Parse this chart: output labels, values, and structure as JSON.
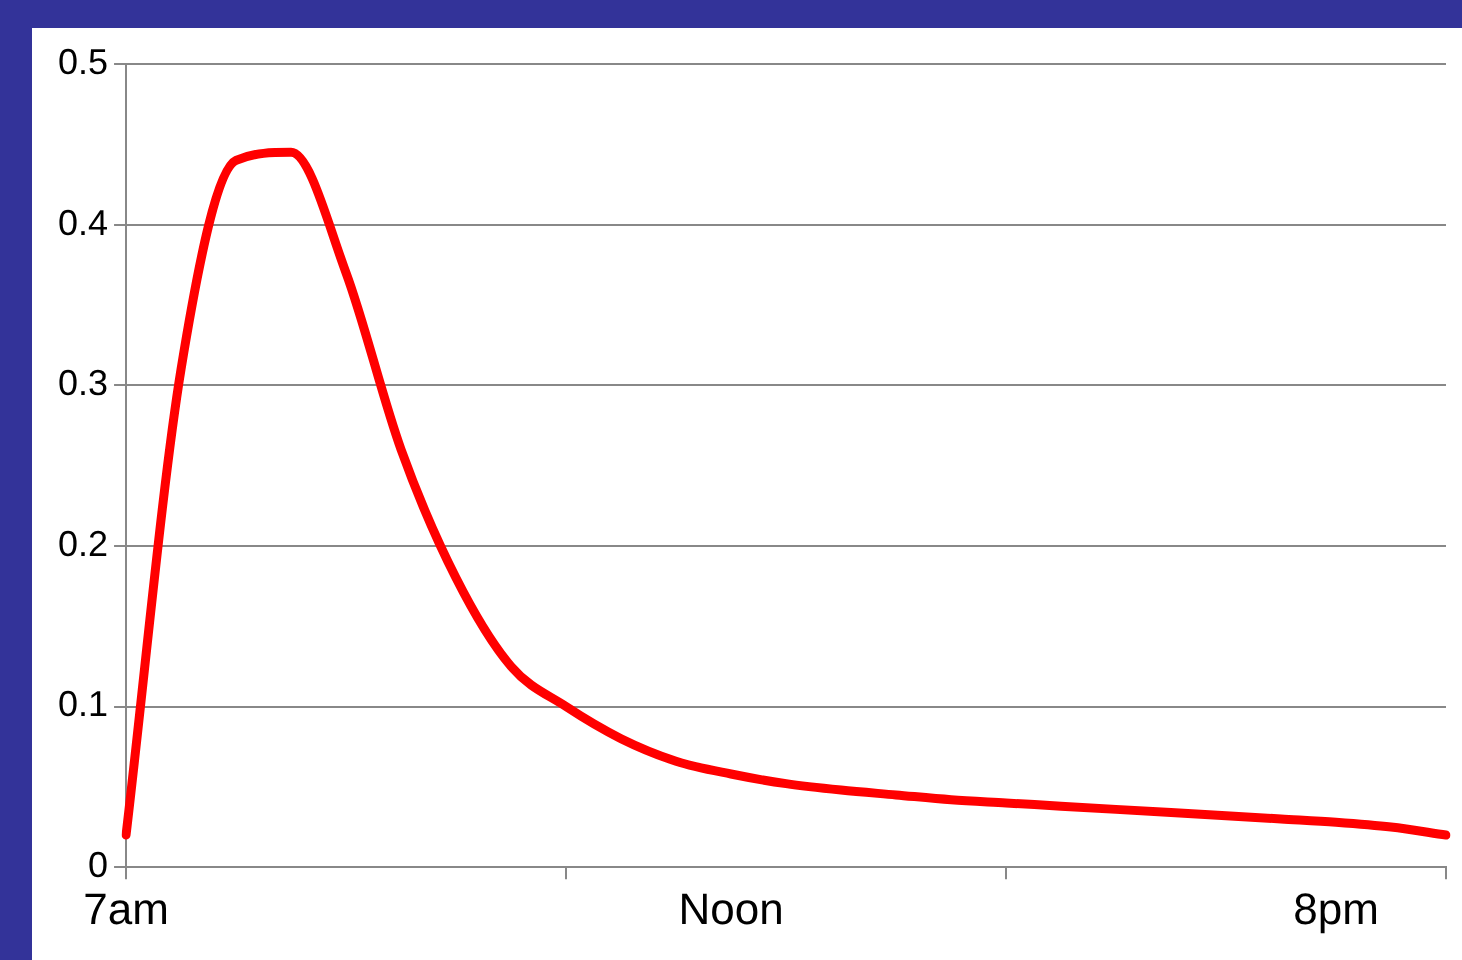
{
  "chart_data": {
    "type": "line",
    "categories": [
      "7am",
      null,
      null,
      null,
      null,
      null,
      null,
      null,
      null,
      null,
      null,
      "Noon",
      null,
      null,
      null,
      null,
      null,
      null,
      null,
      null,
      null,
      null,
      "8pm",
      null,
      null
    ],
    "series": [
      {
        "color": "#ff0000",
        "values": [
          0.02,
          0.31,
          0.44,
          0.445,
          0.37,
          0.26,
          0.18,
          0.125,
          0.1,
          0.08,
          0.066,
          0.058,
          0.052,
          0.048,
          0.045,
          0.042,
          0.04,
          0.038,
          0.036,
          0.034,
          0.032,
          0.03,
          0.028,
          0.025,
          0.02
        ]
      }
    ],
    "ylim": [
      0,
      0.5
    ],
    "yticks": [
      0,
      0.1,
      0.2,
      0.3,
      0.4,
      0.5
    ],
    "grid": "y",
    "legend": false,
    "marker": "none",
    "line_style": "solid"
  }
}
